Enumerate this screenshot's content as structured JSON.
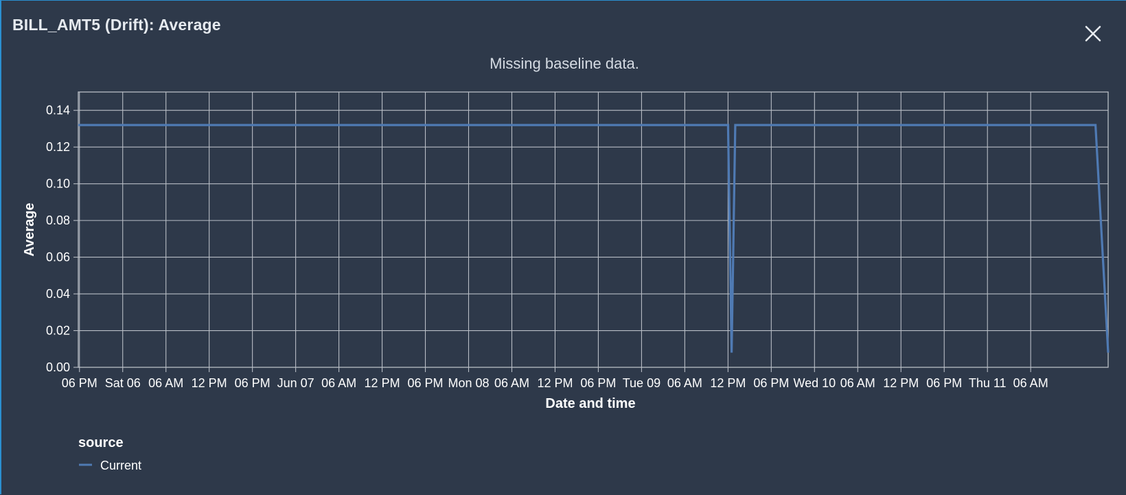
{
  "dialog": {
    "title": "BILL_AMT5 (Drift): Average",
    "close_icon": "close-icon"
  },
  "colors": {
    "background": "#2e394a",
    "grid": "#b9bec6",
    "series_current": "#4f7ab3",
    "text": "#ffffff"
  },
  "chart_data": {
    "type": "line",
    "title": "",
    "subtitle": "Missing baseline data.",
    "xlabel": "Date and time",
    "ylabel": "Average",
    "ylim": [
      0,
      0.15
    ],
    "yticks": [
      0.0,
      0.02,
      0.04,
      0.06,
      0.08,
      0.1,
      0.12,
      0.14
    ],
    "ytick_labels": [
      "0.00",
      "0.02",
      "0.04",
      "0.06",
      "0.08",
      "0.10",
      "0.12",
      "0.14"
    ],
    "xlim": [
      "2020-06-05T17:50",
      "2020-06-11T16:45"
    ],
    "xticks": [
      {
        "t": "2020-06-05T18:00",
        "label": "06 PM"
      },
      {
        "t": "2020-06-06T00:00",
        "label": "Sat 06"
      },
      {
        "t": "2020-06-06T06:00",
        "label": "06 AM"
      },
      {
        "t": "2020-06-06T12:00",
        "label": "12 PM"
      },
      {
        "t": "2020-06-06T18:00",
        "label": "06 PM"
      },
      {
        "t": "2020-06-07T00:00",
        "label": "Jun 07"
      },
      {
        "t": "2020-06-07T06:00",
        "label": "06 AM"
      },
      {
        "t": "2020-06-07T12:00",
        "label": "12 PM"
      },
      {
        "t": "2020-06-07T18:00",
        "label": "06 PM"
      },
      {
        "t": "2020-06-08T00:00",
        "label": "Mon 08"
      },
      {
        "t": "2020-06-08T06:00",
        "label": "06 AM"
      },
      {
        "t": "2020-06-08T12:00",
        "label": "12 PM"
      },
      {
        "t": "2020-06-08T18:00",
        "label": "06 PM"
      },
      {
        "t": "2020-06-09T00:00",
        "label": "Tue 09"
      },
      {
        "t": "2020-06-09T06:00",
        "label": "06 AM"
      },
      {
        "t": "2020-06-09T12:00",
        "label": "12 PM"
      },
      {
        "t": "2020-06-09T18:00",
        "label": "06 PM"
      },
      {
        "t": "2020-06-10T00:00",
        "label": "Wed 10"
      },
      {
        "t": "2020-06-10T06:00",
        "label": "06 AM"
      },
      {
        "t": "2020-06-10T12:00",
        "label": "12 PM"
      },
      {
        "t": "2020-06-10T18:00",
        "label": "06 PM"
      },
      {
        "t": "2020-06-11T00:00",
        "label": "Thu 11"
      },
      {
        "t": "2020-06-11T06:00",
        "label": "06 AM"
      }
    ],
    "grid": true,
    "legend": {
      "title": "source",
      "position": "bottom-left"
    },
    "series": [
      {
        "name": "Current",
        "points": [
          {
            "x": "2020-06-05T17:50",
            "y": 0.132
          },
          {
            "x": "2020-06-09T12:00",
            "y": 0.132
          },
          {
            "x": "2020-06-09T12:30",
            "y": 0.008
          },
          {
            "x": "2020-06-09T13:00",
            "y": 0.132
          },
          {
            "x": "2020-06-11T15:00",
            "y": 0.132
          },
          {
            "x": "2020-06-11T16:45",
            "y": 0.008
          }
        ]
      }
    ]
  }
}
